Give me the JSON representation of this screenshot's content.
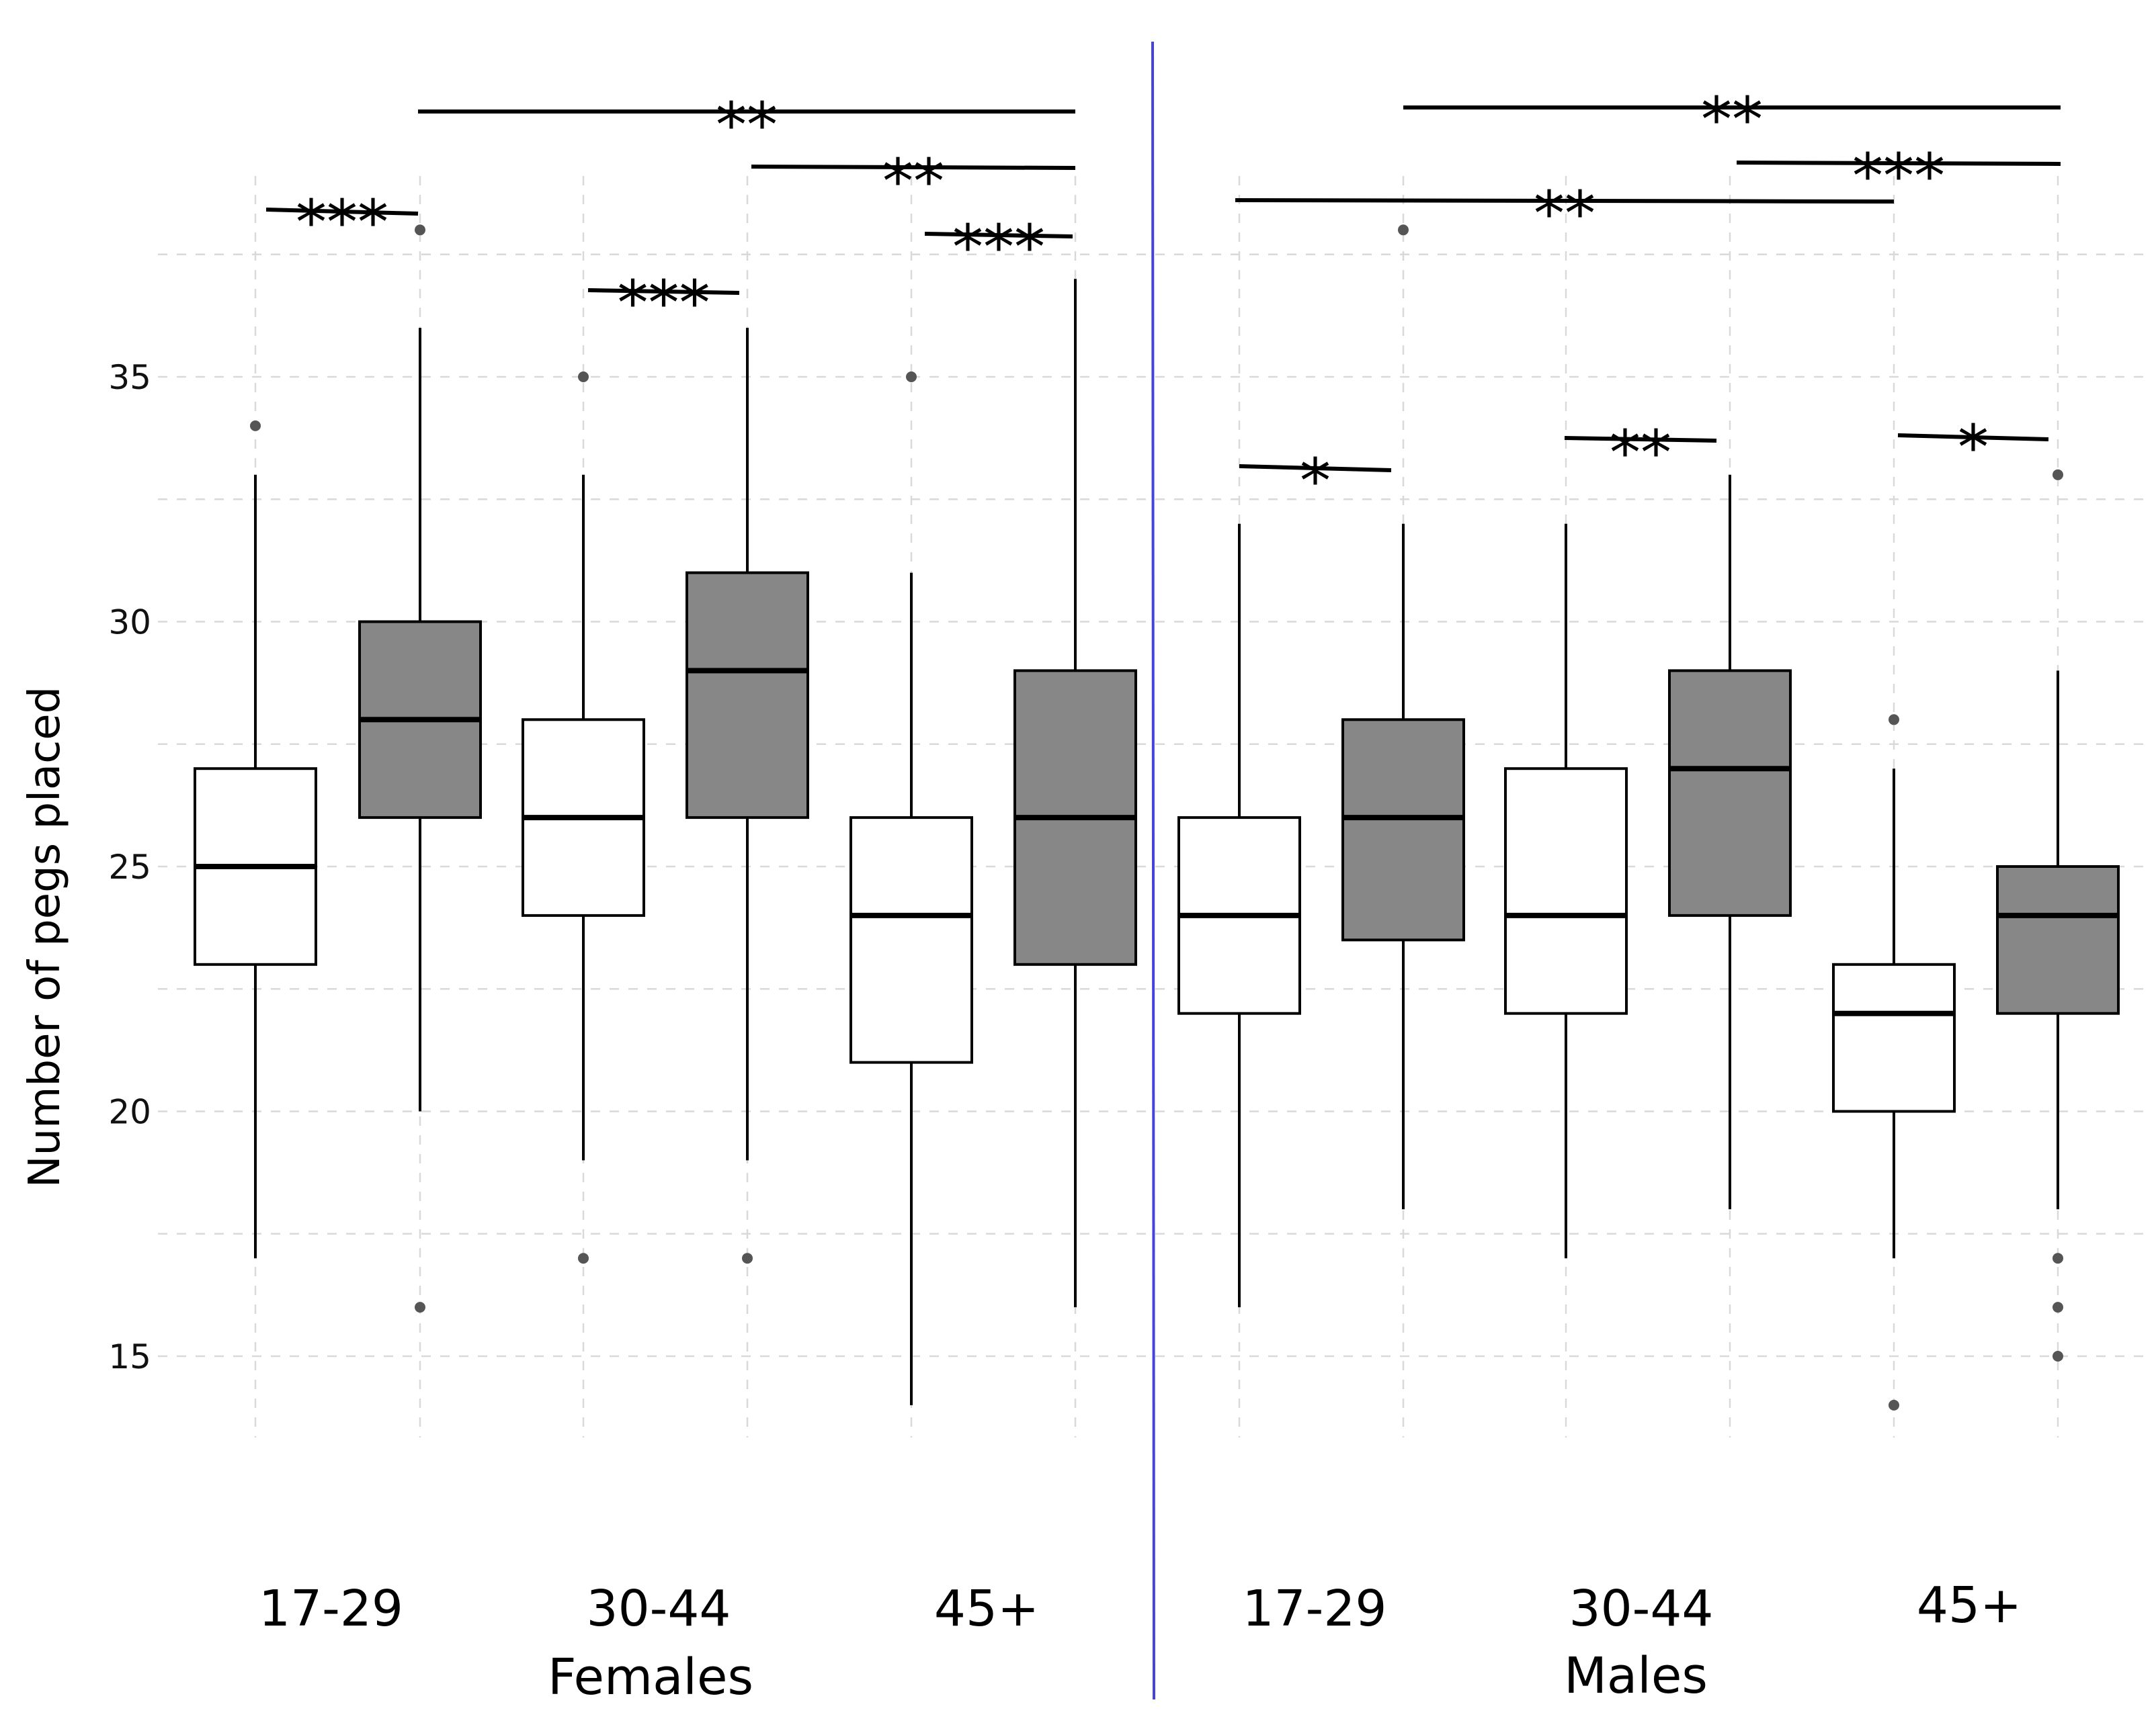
{
  "chart_data": {
    "type": "box",
    "ylabel": "Number of pegs placed",
    "ylim": [
      12.5,
      39
    ],
    "yticks": [
      15,
      20,
      25,
      30,
      35
    ],
    "groups": [
      "Females",
      "Males"
    ],
    "categories": [
      "17-29",
      "30-44",
      "45+"
    ],
    "colors": {
      "white_fill": "#ffffff",
      "gray_fill": "#878787",
      "divider": "#4444dd"
    },
    "boxes": [
      {
        "group": "Females",
        "category": "17-29",
        "fill": "white",
        "whisker_low": 17,
        "q1": 23,
        "median": 25,
        "q3": 27,
        "whisker_high": 33,
        "outliers": [
          34
        ]
      },
      {
        "group": "Females",
        "category": "17-29",
        "fill": "gray",
        "whisker_low": 20,
        "q1": 26,
        "median": 28,
        "q3": 30,
        "whisker_high": 36,
        "outliers": [
          38,
          16
        ]
      },
      {
        "group": "Females",
        "category": "30-44",
        "fill": "white",
        "whisker_low": 19,
        "q1": 24,
        "median": 26,
        "q3": 28,
        "whisker_high": 33,
        "outliers": [
          35,
          17
        ]
      },
      {
        "group": "Females",
        "category": "30-44",
        "fill": "gray",
        "whisker_low": 19,
        "q1": 26,
        "median": 29,
        "q3": 31,
        "whisker_high": 36,
        "outliers": [
          17
        ]
      },
      {
        "group": "Females",
        "category": "45+",
        "fill": "white",
        "whisker_low": 14,
        "q1": 21,
        "median": 24,
        "q3": 26,
        "whisker_high": 31,
        "outliers": [
          35
        ]
      },
      {
        "group": "Females",
        "category": "45+",
        "fill": "gray",
        "whisker_low": 16,
        "q1": 23,
        "median": 26,
        "q3": 29,
        "whisker_high": 37,
        "outliers": []
      },
      {
        "group": "Males",
        "category": "17-29",
        "fill": "white",
        "whisker_low": 16,
        "q1": 22,
        "median": 24,
        "q3": 26,
        "whisker_high": 32,
        "outliers": []
      },
      {
        "group": "Males",
        "category": "17-29",
        "fill": "gray",
        "whisker_low": 18,
        "q1": 23.5,
        "median": 26,
        "q3": 28,
        "whisker_high": 32,
        "outliers": [
          38
        ]
      },
      {
        "group": "Males",
        "category": "30-44",
        "fill": "white",
        "whisker_low": 17,
        "q1": 22,
        "median": 24,
        "q3": 27,
        "whisker_high": 32,
        "outliers": []
      },
      {
        "group": "Males",
        "category": "30-44",
        "fill": "gray",
        "whisker_low": 18,
        "q1": 24,
        "median": 27,
        "q3": 29,
        "whisker_high": 33,
        "outliers": []
      },
      {
        "group": "Males",
        "category": "45+",
        "fill": "white",
        "whisker_low": 17,
        "q1": 20,
        "median": 22,
        "q3": 23,
        "whisker_high": 27,
        "outliers": [
          28,
          14
        ]
      },
      {
        "group": "Males",
        "category": "45+",
        "fill": "gray",
        "whisker_low": 18,
        "q1": 22,
        "median": 24,
        "q3": 25,
        "whisker_high": 29,
        "outliers": [
          33,
          17,
          16,
          15
        ]
      }
    ],
    "significance": [
      {
        "from_box": 0,
        "to_box": 1,
        "label": "***"
      },
      {
        "from_box": 2,
        "to_box": 3,
        "label": "***"
      },
      {
        "from_box": 4,
        "to_box": 5,
        "label": "***"
      },
      {
        "from_box": 3,
        "to_box": 5,
        "label": "**"
      },
      {
        "from_box": 1,
        "to_box": 5,
        "label": "**"
      },
      {
        "from_box": 6,
        "to_box": 7,
        "label": "*"
      },
      {
        "from_box": 8,
        "to_box": 9,
        "label": "**"
      },
      {
        "from_box": 10,
        "to_box": 11,
        "label": "*"
      },
      {
        "from_box": 6,
        "to_box": 10,
        "label": "**"
      },
      {
        "from_box": 9,
        "to_box": 11,
        "label": "***"
      },
      {
        "from_box": 7,
        "to_box": 11,
        "label": "**"
      }
    ]
  }
}
